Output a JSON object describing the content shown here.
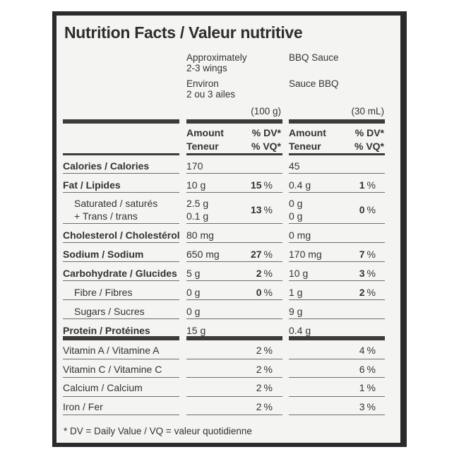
{
  "title": "Nutrition Facts / Valeur nutritive",
  "columns": {
    "col1_header": [
      "Approximately",
      "2-3 wings",
      "Environ",
      "2 ou 3 ailes"
    ],
    "col1_serving": "(100 g)",
    "col2_header": [
      "BBQ Sauce",
      "Sauce BBQ"
    ],
    "col2_serving": "(30 mL)",
    "amount": [
      "Amount",
      "Teneur"
    ],
    "dv": [
      "% DV*",
      "% VQ*"
    ]
  },
  "rows": [
    {
      "label": "Calories / Calories",
      "bold": true,
      "c1": "170",
      "d1": "",
      "c2": "45",
      "d2": ""
    },
    {
      "label": "Fat / Lipides",
      "bold": true,
      "c1": "10 g",
      "d1": "15",
      "c2": "0.4 g",
      "d2": "1"
    },
    {
      "label": "Saturated / saturés",
      "label2": "+ Trans / trans",
      "indent": true,
      "c1": "2.5 g",
      "c1b": "0.1 g",
      "d1": "13",
      "c2": "0 g",
      "c2b": "0 g",
      "d2": "0"
    },
    {
      "label": "Cholesterol / Cholestérol",
      "bold": true,
      "c1": "80 mg",
      "d1": "",
      "c2": "0 mg",
      "d2": ""
    },
    {
      "label": "Sodium / Sodium",
      "bold": true,
      "c1": "650 mg",
      "d1": "27",
      "c2": "170 mg",
      "d2": "7"
    },
    {
      "label": "Carbohydrate / Glucides",
      "bold": true,
      "c1": "5 g",
      "d1": "2",
      "c2": "10 g",
      "d2": "3"
    },
    {
      "label": "Fibre / Fibres",
      "indent": true,
      "c1": "0 g",
      "d1": "0",
      "c2": "1 g",
      "d2": "2"
    },
    {
      "label": "Sugars / Sucres",
      "indent": true,
      "c1": "0 g",
      "d1": "",
      "c2": "9 g",
      "d2": ""
    },
    {
      "label": "Protein / Protéines",
      "bold": true,
      "c1": "15 g",
      "d1": "",
      "c2": "0.4 g",
      "d2": ""
    }
  ],
  "vitamins": [
    {
      "label": "Vitamin A / Vitamine A",
      "d1": "2",
      "d2": "4"
    },
    {
      "label": "Vitamin C / Vitamine C",
      "d1": "2",
      "d2": "6"
    },
    {
      "label": "Calcium / Calcium",
      "d1": "2",
      "d2": "1"
    },
    {
      "label": "Iron / Fer",
      "d1": "2",
      "d2": "3"
    }
  ],
  "pct": "%",
  "footnote": "* DV = Daily Value / VQ = valeur quotidienne"
}
